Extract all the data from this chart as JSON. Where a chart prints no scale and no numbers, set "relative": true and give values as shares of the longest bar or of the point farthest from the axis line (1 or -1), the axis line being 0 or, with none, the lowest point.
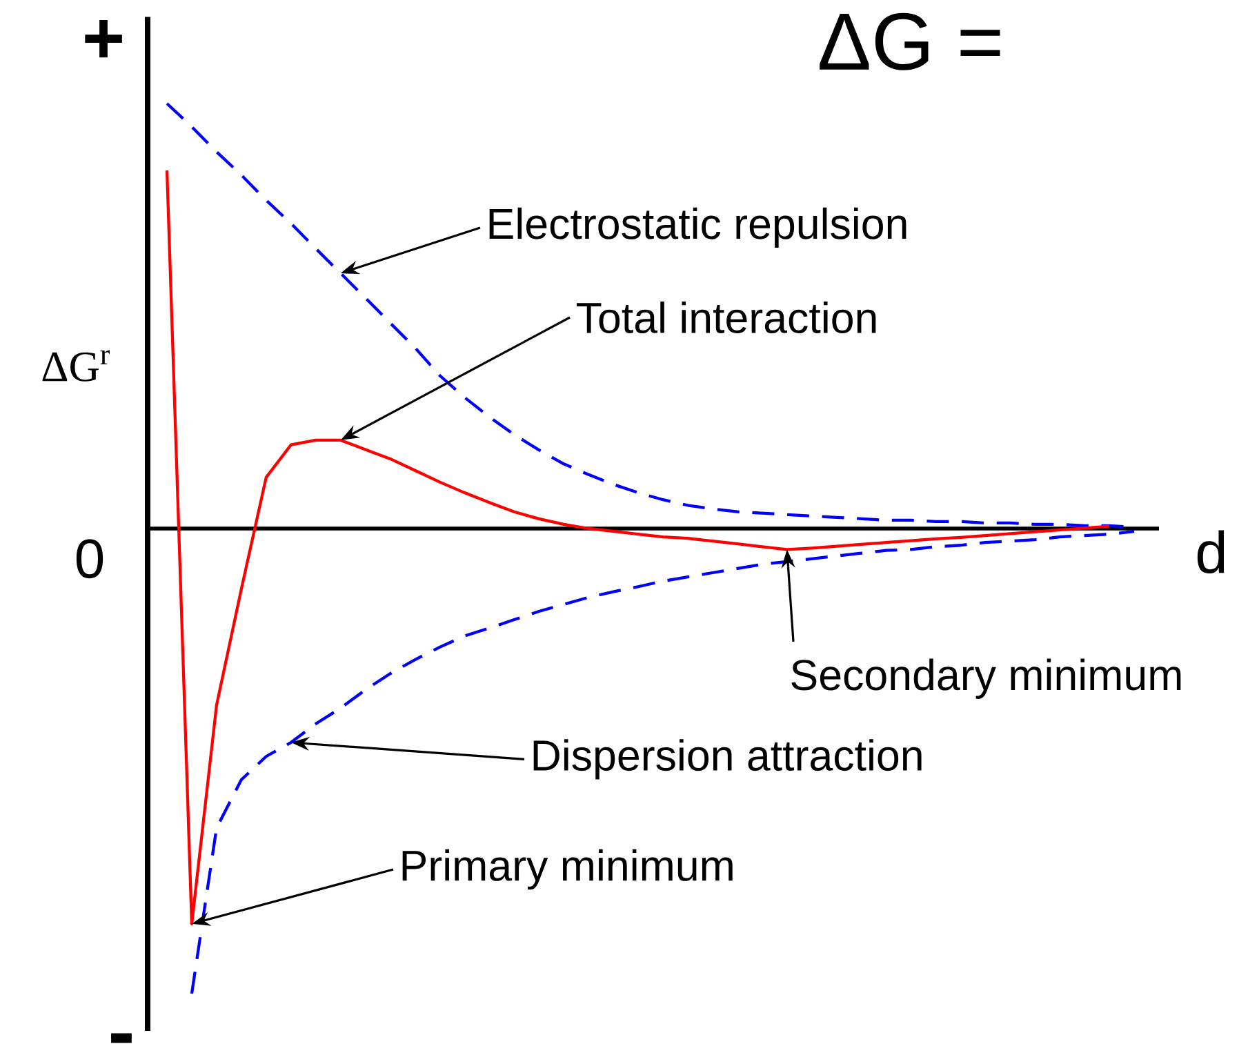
{
  "chart_data": {
    "type": "line",
    "relative": true,
    "title": "ΔG =",
    "xlabel": "d",
    "ylabel": "ΔG$^{r}$",
    "categories": [
      null,
      null,
      null,
      null,
      null,
      null,
      null,
      null,
      null,
      null,
      null,
      null,
      null,
      null,
      null,
      null,
      null,
      null,
      null,
      null,
      null,
      null,
      null,
      null,
      null,
      null,
      null,
      null,
      null,
      null,
      null,
      null,
      null,
      null,
      null,
      null,
      null,
      null,
      null,
      null,
      null
    ],
    "series": [
      {
        "color": "#0000ff",
        "line_style": "dashed",
        "values": [
          0.914,
          0.864,
          0.81,
          0.76,
          0.706,
          0.656,
          0.602,
          0.549,
          0.496,
          0.442,
          0.389,
          0.329,
          0.282,
          0.24,
          0.202,
          0.169,
          0.139,
          0.116,
          0.095,
          0.077,
          0.062,
          0.05,
          0.042,
          0.036,
          0.033,
          0.03,
          0.027,
          0.024,
          0.021,
          0.018,
          0.018,
          0.015,
          0.015,
          0.012,
          0.012,
          0.009,
          0.009,
          0.006,
          0.006,
          0.003,
          null
        ]
      },
      {
        "color": "#ff0000",
        "line_style": "solid",
        "values": [
          0.77,
          -0.85,
          -0.38,
          -0.13,
          0.11,
          0.18,
          0.19,
          0.19,
          0.17,
          0.15,
          0.125,
          0.1,
          0.077,
          0.056,
          0.036,
          0.021,
          0.009,
          0,
          -0.006,
          -0.012,
          -0.018,
          -0.021,
          -0.027,
          -0.033,
          -0.039,
          -0.045,
          -0.042,
          -0.038,
          -0.034,
          -0.03,
          -0.026,
          -0.022,
          -0.019,
          -0.015,
          -0.011,
          -0.007,
          -0.003,
          0.001,
          0.005,
          null,
          null
        ]
      },
      {
        "color": "#0000ff",
        "line_style": "dashed",
        "values": [
          null,
          -1.0,
          -0.644,
          -0.54,
          -0.49,
          -0.46,
          -0.42,
          -0.386,
          -0.347,
          -0.312,
          -0.282,
          -0.255,
          -0.231,
          -0.214,
          -0.196,
          -0.178,
          -0.163,
          -0.148,
          -0.136,
          -0.125,
          -0.113,
          -0.104,
          -0.095,
          -0.086,
          -0.077,
          -0.071,
          -0.065,
          -0.059,
          -0.053,
          -0.047,
          -0.045,
          -0.039,
          -0.036,
          -0.03,
          -0.027,
          -0.024,
          -0.018,
          -0.015,
          -0.012,
          -0.006,
          null
        ]
      }
    ],
    "annotations": [
      "+",
      "0",
      "-",
      "Electrostatic repulsion",
      "Total interaction",
      "Dispersion attraction",
      "Primary minimum",
      "Secondary minimum"
    ]
  }
}
